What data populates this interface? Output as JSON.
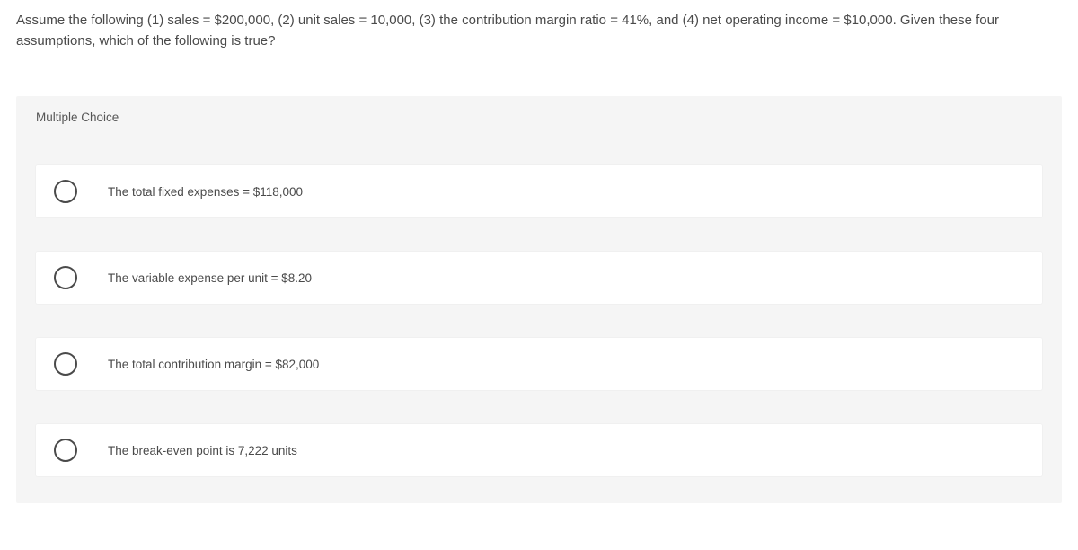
{
  "question": "Assume the following (1) sales = $200,000, (2) unit sales = 10,000, (3) the contribution margin ratio = 41%, and (4) net operating income = $10,000. Given these four assumptions, which of the following is true?",
  "section_label": "Multiple Choice",
  "options": [
    {
      "label": "The total fixed expenses = $118,000"
    },
    {
      "label": "The variable expense per unit = $8.20"
    },
    {
      "label": "The total contribution margin = $82,000"
    },
    {
      "label": "The break-even point is 7,222 units"
    }
  ],
  "colors": {
    "text": "#4a4a4a",
    "panel_bg": "#f5f5f5",
    "option_bg": "#ffffff",
    "radio_border": "#4a4a4a"
  }
}
